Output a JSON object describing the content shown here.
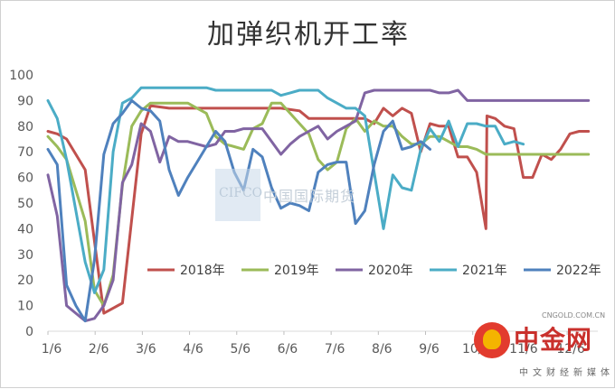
{
  "chart_data": {
    "type": "line",
    "title": "加弹织机开工率",
    "xlabel": "",
    "ylabel": "",
    "ylim": [
      0,
      100
    ],
    "y_ticks": [
      0,
      10,
      20,
      30,
      40,
      50,
      60,
      70,
      80,
      90,
      100
    ],
    "x_ticks": [
      "1/6",
      "2/6",
      "3/6",
      "4/6",
      "5/6",
      "6/6",
      "7/6",
      "8/6",
      "9/6",
      "10/6",
      "11/6",
      "12/6"
    ],
    "grid": false,
    "legend_position": "bottom-center",
    "series": [
      {
        "name": "2018年",
        "color": "#c0504d",
        "points": [
          [
            1,
            78
          ],
          [
            2,
            77
          ],
          [
            3,
            75
          ],
          [
            5,
            63
          ],
          [
            7,
            7
          ],
          [
            8,
            9
          ],
          [
            9,
            11
          ],
          [
            11,
            77
          ],
          [
            12,
            88
          ],
          [
            14,
            87
          ],
          [
            16,
            87
          ],
          [
            18,
            87
          ],
          [
            20,
            87
          ],
          [
            22,
            87
          ],
          [
            24,
            87
          ],
          [
            26,
            87
          ],
          [
            28,
            86
          ],
          [
            29,
            83
          ],
          [
            31,
            83
          ],
          [
            33,
            83
          ],
          [
            35,
            83
          ],
          [
            36,
            81
          ],
          [
            37,
            87
          ],
          [
            38,
            84
          ],
          [
            39,
            87
          ],
          [
            40,
            85
          ],
          [
            41,
            70
          ],
          [
            42,
            81
          ],
          [
            43,
            80
          ],
          [
            44,
            80
          ],
          [
            45,
            68
          ],
          [
            46,
            68
          ],
          [
            47,
            62
          ],
          [
            48,
            40
          ],
          [
            48.1,
            84
          ],
          [
            49,
            83
          ],
          [
            50,
            80
          ],
          [
            51,
            79
          ],
          [
            52,
            60
          ],
          [
            53,
            60
          ],
          [
            54,
            69
          ],
          [
            55,
            67
          ],
          [
            56,
            71
          ],
          [
            57,
            77
          ],
          [
            58,
            78
          ],
          [
            59,
            78
          ]
        ]
      },
      {
        "name": "2019年",
        "color": "#9bbb59",
        "points": [
          [
            1,
            76
          ],
          [
            2,
            72
          ],
          [
            3,
            67
          ],
          [
            5,
            43
          ],
          [
            6,
            16
          ],
          [
            7,
            10
          ],
          [
            8,
            22
          ],
          [
            9,
            57
          ],
          [
            10,
            80
          ],
          [
            11,
            86
          ],
          [
            12,
            89
          ],
          [
            14,
            89
          ],
          [
            16,
            89
          ],
          [
            17,
            87
          ],
          [
            18,
            85
          ],
          [
            19,
            76
          ],
          [
            20,
            73
          ],
          [
            21,
            72
          ],
          [
            22,
            71
          ],
          [
            23,
            79
          ],
          [
            24,
            81
          ],
          [
            25,
            89
          ],
          [
            26,
            89
          ],
          [
            27,
            85
          ],
          [
            28,
            81
          ],
          [
            29,
            77
          ],
          [
            30,
            67
          ],
          [
            31,
            63
          ],
          [
            32,
            66
          ],
          [
            33,
            79
          ],
          [
            34,
            83
          ],
          [
            35,
            78
          ],
          [
            36,
            82
          ],
          [
            37,
            80
          ],
          [
            38,
            80
          ],
          [
            39,
            76
          ],
          [
            40,
            73
          ],
          [
            41,
            73
          ],
          [
            42,
            76
          ],
          [
            43,
            76
          ],
          [
            44,
            74
          ],
          [
            45,
            72
          ],
          [
            46,
            72
          ],
          [
            47,
            71
          ],
          [
            48,
            69
          ],
          [
            49,
            69
          ],
          [
            59,
            69
          ]
        ]
      },
      {
        "name": "2020年",
        "color": "#8064a2",
        "points": [
          [
            1,
            61
          ],
          [
            2,
            45
          ],
          [
            3,
            10
          ],
          [
            4,
            7
          ],
          [
            5,
            4
          ],
          [
            6,
            5
          ],
          [
            7,
            10
          ],
          [
            8,
            20
          ],
          [
            9,
            58
          ],
          [
            10,
            65
          ],
          [
            11,
            81
          ],
          [
            12,
            78
          ],
          [
            13,
            66
          ],
          [
            14,
            76
          ],
          [
            15,
            74
          ],
          [
            16,
            74
          ],
          [
            17,
            73
          ],
          [
            18,
            72
          ],
          [
            19,
            73
          ],
          [
            20,
            78
          ],
          [
            21,
            78
          ],
          [
            22,
            79
          ],
          [
            23,
            79
          ],
          [
            24,
            79
          ],
          [
            25,
            74
          ],
          [
            26,
            69
          ],
          [
            27,
            73
          ],
          [
            28,
            76
          ],
          [
            29,
            78
          ],
          [
            30,
            80
          ],
          [
            31,
            75
          ],
          [
            32,
            78
          ],
          [
            33,
            80
          ],
          [
            34,
            82
          ],
          [
            35,
            93
          ],
          [
            36,
            94
          ],
          [
            38,
            94
          ],
          [
            40,
            94
          ],
          [
            42,
            94
          ],
          [
            43,
            93
          ],
          [
            44,
            93
          ],
          [
            45,
            94
          ],
          [
            46,
            90
          ],
          [
            47,
            90
          ],
          [
            59,
            90
          ]
        ]
      },
      {
        "name": "2021年",
        "color": "#4bacc6",
        "points": [
          [
            1,
            90
          ],
          [
            2,
            83
          ],
          [
            3,
            67
          ],
          [
            5,
            27
          ],
          [
            6,
            15
          ],
          [
            7,
            24
          ],
          [
            8,
            70
          ],
          [
            9,
            89
          ],
          [
            10,
            91
          ],
          [
            11,
            95
          ],
          [
            13,
            95
          ],
          [
            15,
            95
          ],
          [
            17,
            95
          ],
          [
            18,
            95
          ],
          [
            19,
            94
          ],
          [
            21,
            94
          ],
          [
            23,
            94
          ],
          [
            25,
            94
          ],
          [
            26,
            92
          ],
          [
            27,
            93
          ],
          [
            28,
            94
          ],
          [
            30,
            94
          ],
          [
            31,
            91
          ],
          [
            32,
            89
          ],
          [
            33,
            87
          ],
          [
            34,
            87
          ],
          [
            35,
            84
          ],
          [
            36,
            62
          ],
          [
            37,
            40
          ],
          [
            38,
            61
          ],
          [
            39,
            56
          ],
          [
            40,
            55
          ],
          [
            41,
            71
          ],
          [
            42,
            79
          ],
          [
            43,
            74
          ],
          [
            44,
            82
          ],
          [
            45,
            72
          ],
          [
            46,
            81
          ],
          [
            47,
            81
          ],
          [
            48,
            80
          ],
          [
            49,
            80
          ],
          [
            50,
            73
          ],
          [
            51,
            74
          ],
          [
            52,
            73
          ]
        ]
      },
      {
        "name": "2022年",
        "color": "#4f81bd",
        "points": [
          [
            1,
            71
          ],
          [
            2,
            65
          ],
          [
            3,
            18
          ],
          [
            4,
            10
          ],
          [
            5,
            4
          ],
          [
            6,
            28
          ],
          [
            7,
            69
          ],
          [
            8,
            81
          ],
          [
            9,
            85
          ],
          [
            10,
            90
          ],
          [
            11,
            87
          ],
          [
            12,
            86
          ],
          [
            13,
            82
          ],
          [
            14,
            63
          ],
          [
            15,
            53
          ],
          [
            16,
            60
          ],
          [
            17,
            66
          ],
          [
            18,
            72
          ],
          [
            19,
            78
          ],
          [
            20,
            74
          ],
          [
            21,
            62
          ],
          [
            22,
            55
          ],
          [
            23,
            71
          ],
          [
            24,
            68
          ],
          [
            25,
            56
          ],
          [
            26,
            48
          ],
          [
            27,
            50
          ],
          [
            28,
            49
          ],
          [
            29,
            47
          ],
          [
            30,
            62
          ],
          [
            31,
            65
          ],
          [
            32,
            66
          ],
          [
            33,
            66
          ],
          [
            34,
            42
          ],
          [
            35,
            47
          ],
          [
            36,
            65
          ],
          [
            37,
            78
          ],
          [
            38,
            82
          ],
          [
            39,
            71
          ],
          [
            40,
            72
          ],
          [
            41,
            74
          ],
          [
            42,
            71
          ]
        ]
      }
    ]
  },
  "watermark": {
    "latin": "CIFCO",
    "cn": "中国国际期货"
  },
  "logo": {
    "name": "中金网",
    "url": "CNGOLD.COM.CN",
    "sub": "中文财经新媒体"
  }
}
